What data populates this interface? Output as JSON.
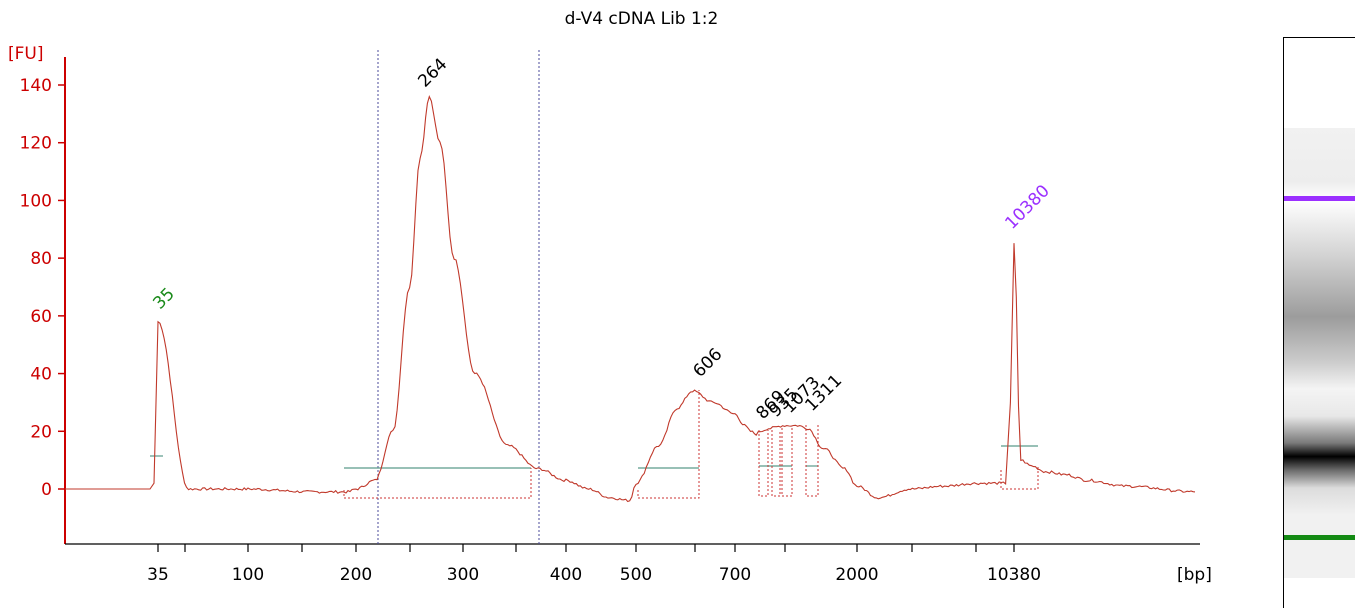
{
  "chart_data": {
    "type": "line",
    "title": "d-V4 cDNA Lib 1:2",
    "ylabel": "[FU]",
    "xlabel": "[bp]",
    "ylim": [
      -18,
      150
    ],
    "yticks": [
      0,
      20,
      40,
      60,
      80,
      100,
      120,
      140
    ],
    "xtick_labels": [
      "35",
      "100",
      "200",
      "300",
      "400",
      "500",
      "700",
      "2000",
      "10380"
    ],
    "peak_labels": [
      "35",
      "264",
      "606",
      "869",
      "935",
      "1073",
      "1311",
      "10380"
    ],
    "series": [
      {
        "x": [
          35,
          50,
          80,
          100,
          150,
          190,
          200,
          215,
          230,
          245,
          255,
          264,
          275,
          290,
          310,
          340,
          370,
          400,
          430,
          460,
          490,
          500,
          540,
          575,
          606,
          650,
          700,
          760,
          800,
          840,
          869,
          935,
          1073,
          1200,
          1311,
          1500,
          1800,
          2000,
          2500,
          3500,
          5000,
          7000,
          8500,
          9500,
          10000,
          10380,
          10800,
          11500,
          12500,
          14000,
          16000,
          20000,
          30000
        ],
        "values": [
          58,
          0,
          0,
          0,
          -1,
          -1,
          0,
          3,
          20,
          70,
          115,
          136,
          120,
          80,
          40,
          15,
          7,
          3,
          0,
          -3,
          -4,
          2,
          15,
          28,
          34,
          30,
          26,
          22,
          20,
          19,
          20,
          21,
          22,
          22,
          21,
          14,
          7,
          1,
          -3,
          0,
          1,
          2,
          2,
          2,
          30,
          85,
          10,
          8,
          6,
          5,
          3,
          1,
          -1
        ]
      }
    ]
  }
}
